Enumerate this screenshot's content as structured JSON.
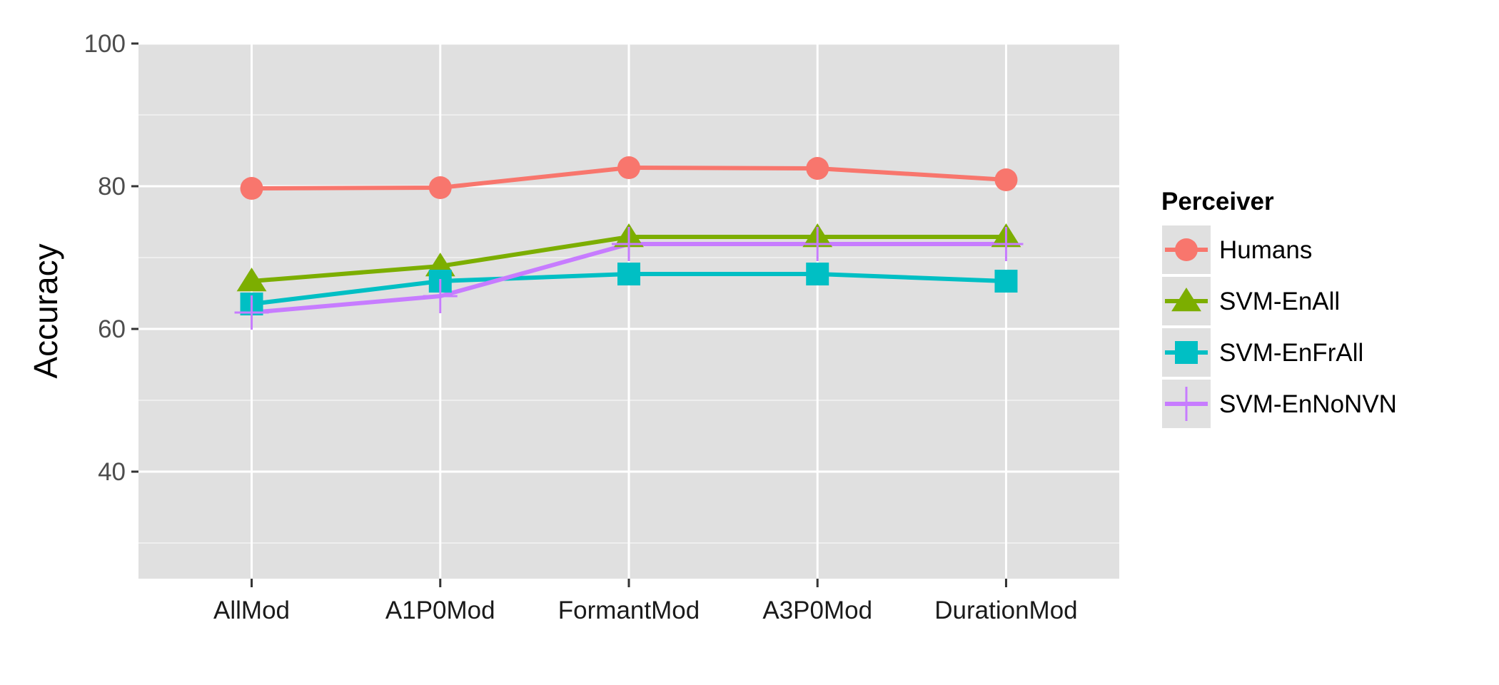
{
  "chart_data": {
    "type": "line",
    "title": "",
    "xlabel": "",
    "ylabel": "Accuracy",
    "ylim": [
      25,
      100
    ],
    "yticks": [
      40,
      60,
      80,
      100
    ],
    "grid": true,
    "legend_title": "Perceiver",
    "legend_position": "right",
    "categories": [
      "AllMod",
      "A1P0Mod",
      "FormantMod",
      "A3P0Mod",
      "DurationMod"
    ],
    "series": [
      {
        "name": "Humans",
        "color": "#F8766D",
        "marker": "circle",
        "values": [
          79.7,
          79.8,
          82.6,
          82.5,
          80.9
        ]
      },
      {
        "name": "SVM-EnAll",
        "color": "#7CAE00",
        "marker": "triangle",
        "values": [
          66.7,
          68.8,
          72.9,
          72.9,
          72.9
        ]
      },
      {
        "name": "SVM-EnFrAll",
        "color": "#00BFC4",
        "marker": "square",
        "values": [
          63.5,
          66.7,
          67.7,
          67.7,
          66.7
        ]
      },
      {
        "name": "SVM-EnNoNVN",
        "color": "#C77CFF",
        "marker": "cross",
        "values": [
          62.3,
          64.6,
          71.9,
          71.9,
          71.9
        ]
      }
    ]
  }
}
